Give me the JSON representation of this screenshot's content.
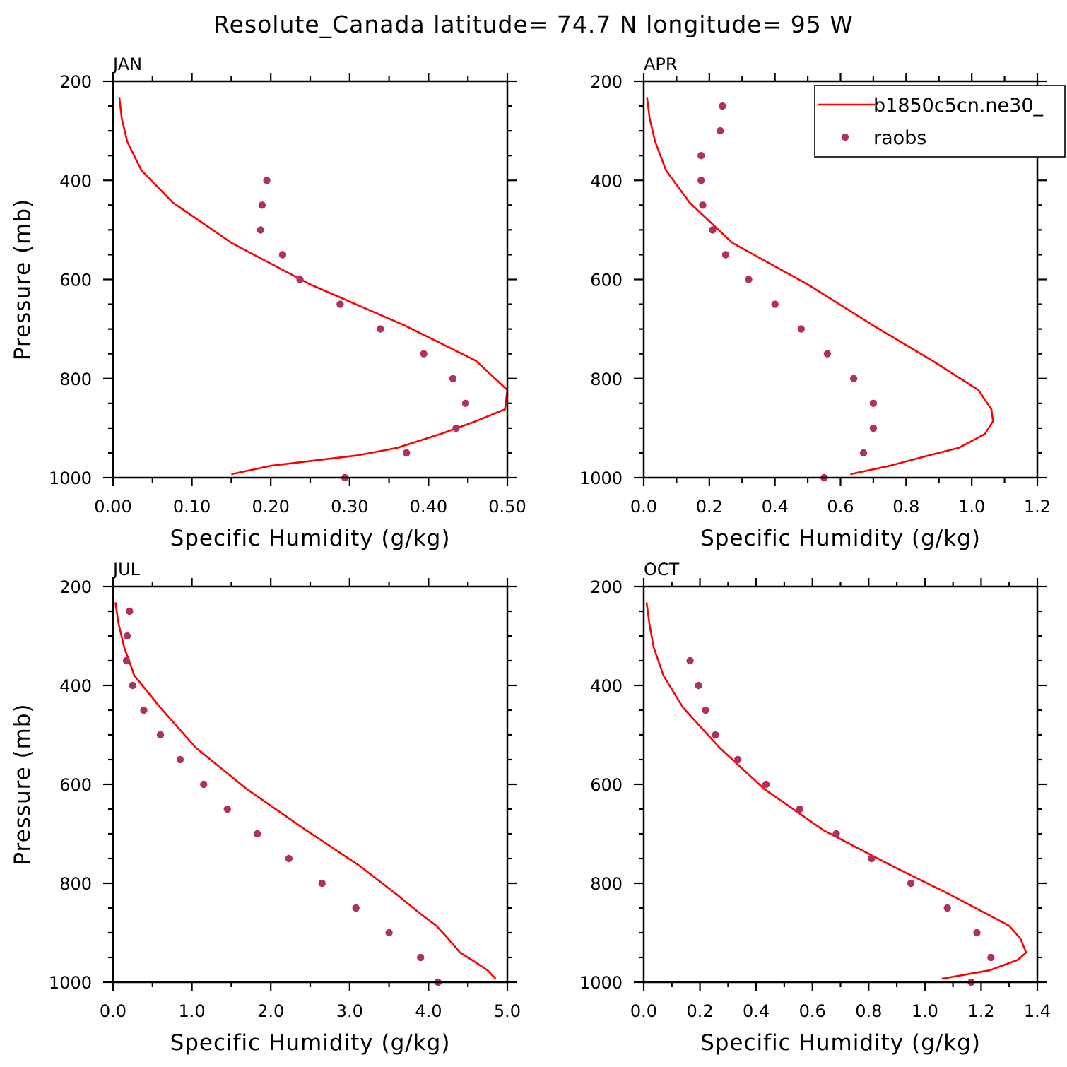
{
  "figure_title": "Resolute_Canada  latitude= 74.7 N longitude= 95 W",
  "legend": {
    "model_label": "b1850c5cn.ne30_",
    "obs_label": "raobs"
  },
  "colors": {
    "model": "#ff0000",
    "obs": "#b03060",
    "axes": "#000000"
  },
  "chart_data": [
    {
      "type": "line",
      "panel_label": "JAN",
      "xlabel": "Specific Humidity (g/kg)",
      "ylabel": "Pressure (mb)",
      "xlim": [
        0,
        0.5
      ],
      "ylim": [
        200,
        1000
      ],
      "y_inverted": true,
      "x_ticks": [
        0,
        0.1,
        0.2,
        0.3,
        0.4,
        0.5
      ],
      "x_tick_labels": [
        "0.00",
        "0.10",
        "0.20",
        "0.30",
        "0.40",
        "0.50"
      ],
      "y_ticks": [
        200,
        400,
        600,
        800,
        1000
      ],
      "y_tick_labels": [
        "200",
        "400",
        "600",
        "800",
        "1000"
      ],
      "legend_shown": false,
      "series": [
        {
          "name": "b1850c5cn.ne30_",
          "style": "line",
          "x": [
            0.008,
            0.011,
            0.018,
            0.036,
            0.076,
            0.15,
            0.25,
            0.37,
            0.46,
            0.5,
            0.497,
            0.46,
            0.415,
            0.36,
            0.31,
            0.2,
            0.15
          ],
          "y": [
            232,
            275,
            322,
            380,
            445,
            526,
            610,
            693,
            764,
            823,
            862,
            886,
            912,
            940,
            955,
            976,
            993
          ]
        },
        {
          "name": "raobs",
          "style": "markers",
          "x": [
            0.195,
            0.189,
            0.187,
            0.215,
            0.237,
            0.288,
            0.339,
            0.394,
            0.431,
            0.447,
            0.435,
            0.372,
            0.294
          ],
          "y": [
            400,
            450,
            500,
            550,
            600,
            650,
            700,
            750,
            800,
            850,
            900,
            950,
            1000
          ]
        }
      ]
    },
    {
      "type": "line",
      "panel_label": "APR",
      "xlabel": "Specific Humidity (g/kg)",
      "ylabel": "",
      "xlim": [
        0,
        1.2
      ],
      "ylim": [
        200,
        1000
      ],
      "y_inverted": true,
      "x_ticks": [
        0,
        0.2,
        0.4,
        0.6,
        0.8,
        1.0,
        1.2
      ],
      "x_tick_labels": [
        "0.0",
        "0.2",
        "0.4",
        "0.6",
        "0.8",
        "1.0",
        "1.2"
      ],
      "y_ticks": [
        200,
        400,
        600,
        800,
        1000
      ],
      "y_tick_labels": [
        "200",
        "400",
        "600",
        "800",
        "1000"
      ],
      "legend_shown": true,
      "series": [
        {
          "name": "b1850c5cn.ne30_",
          "style": "line",
          "x": [
            0.01,
            0.018,
            0.035,
            0.068,
            0.14,
            0.27,
            0.5,
            0.7,
            0.88,
            1.02,
            1.06,
            1.065,
            1.04,
            0.96,
            0.87,
            0.75,
            0.63
          ],
          "y": [
            232,
            275,
            322,
            380,
            445,
            526,
            610,
            693,
            764,
            823,
            862,
            886,
            912,
            940,
            955,
            976,
            993
          ]
        },
        {
          "name": "raobs",
          "style": "markers",
          "x": [
            0.24,
            0.233,
            0.175,
            0.175,
            0.18,
            0.21,
            0.25,
            0.32,
            0.4,
            0.48,
            0.56,
            0.64,
            0.7,
            0.7,
            0.67,
            0.55
          ],
          "y": [
            250,
            300,
            350,
            400,
            450,
            500,
            550,
            600,
            650,
            700,
            750,
            800,
            850,
            900,
            950,
            1000
          ]
        }
      ]
    },
    {
      "type": "line",
      "panel_label": "JUL",
      "xlabel": "Specific Humidity (g/kg)",
      "ylabel": "Pressure (mb)",
      "xlim": [
        0,
        5.0
      ],
      "ylim": [
        200,
        1000
      ],
      "y_inverted": true,
      "x_ticks": [
        0,
        1,
        2,
        3,
        4,
        5
      ],
      "x_tick_labels": [
        "0.0",
        "1.0",
        "2.0",
        "3.0",
        "4.0",
        "5.0"
      ],
      "y_ticks": [
        200,
        400,
        600,
        800,
        1000
      ],
      "y_tick_labels": [
        "200",
        "400",
        "600",
        "800",
        "1000"
      ],
      "legend_shown": false,
      "series": [
        {
          "name": "b1850c5cn.ne30_",
          "style": "line",
          "x": [
            0.03,
            0.07,
            0.14,
            0.27,
            0.6,
            1.05,
            1.7,
            2.45,
            3.12,
            3.6,
            3.9,
            4.1,
            4.25,
            4.4,
            4.55,
            4.75,
            4.85
          ],
          "y": [
            232,
            275,
            322,
            380,
            445,
            526,
            610,
            693,
            764,
            823,
            862,
            886,
            912,
            940,
            955,
            976,
            993
          ]
        },
        {
          "name": "raobs",
          "style": "markers",
          "x": [
            0.21,
            0.18,
            0.17,
            0.25,
            0.39,
            0.6,
            0.85,
            1.15,
            1.45,
            1.83,
            2.23,
            2.65,
            3.08,
            3.5,
            3.9,
            4.12
          ],
          "y": [
            250,
            300,
            350,
            400,
            450,
            500,
            550,
            600,
            650,
            700,
            750,
            800,
            850,
            900,
            950,
            1000
          ]
        }
      ]
    },
    {
      "type": "line",
      "panel_label": "OCT",
      "xlabel": "Specific Humidity (g/kg)",
      "ylabel": "",
      "xlim": [
        0,
        1.4
      ],
      "ylim": [
        200,
        1000
      ],
      "y_inverted": true,
      "x_ticks": [
        0,
        0.2,
        0.4,
        0.6,
        0.8,
        1.0,
        1.2,
        1.4
      ],
      "x_tick_labels": [
        "0.0",
        "0.2",
        "0.4",
        "0.6",
        "0.8",
        "1.0",
        "1.2",
        "1.4"
      ],
      "y_ticks": [
        200,
        400,
        600,
        800,
        1000
      ],
      "y_tick_labels": [
        "200",
        "400",
        "600",
        "800",
        "1000"
      ],
      "legend_shown": false,
      "series": [
        {
          "name": "b1850c5cn.ne30_",
          "style": "line",
          "x": [
            0.01,
            0.02,
            0.035,
            0.07,
            0.14,
            0.27,
            0.43,
            0.64,
            0.88,
            1.09,
            1.22,
            1.3,
            1.34,
            1.36,
            1.33,
            1.23,
            1.06
          ],
          "y": [
            232,
            275,
            322,
            380,
            445,
            526,
            610,
            693,
            764,
            823,
            862,
            886,
            912,
            940,
            955,
            976,
            993
          ]
        },
        {
          "name": "raobs",
          "style": "markers",
          "x": [
            0.165,
            0.195,
            0.22,
            0.255,
            0.335,
            0.435,
            0.555,
            0.685,
            0.81,
            0.95,
            1.08,
            1.185,
            1.235,
            1.165
          ],
          "y": [
            350,
            400,
            450,
            500,
            550,
            600,
            650,
            700,
            750,
            800,
            850,
            900,
            950,
            1000
          ]
        }
      ]
    }
  ]
}
